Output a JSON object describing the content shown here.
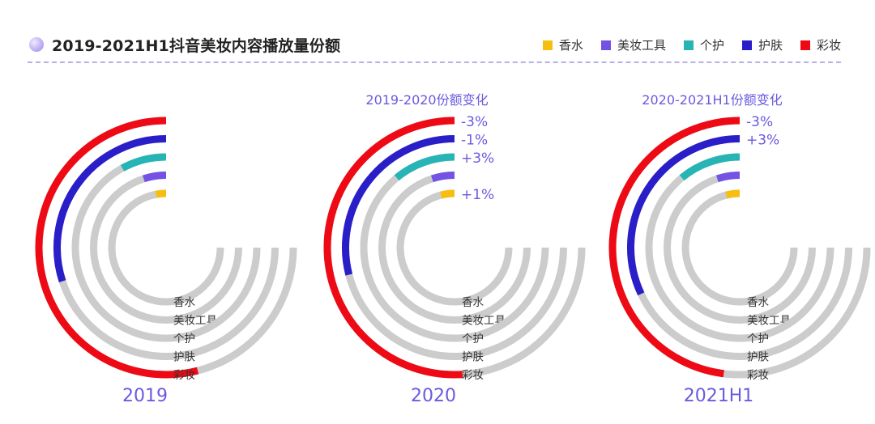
{
  "title": "2019-2021H1抖音美妆内容播放量份额",
  "legend": [
    {
      "label": "香水",
      "color": "#f7be12"
    },
    {
      "label": "美妆工具",
      "color": "#7452e4"
    },
    {
      "label": "个护",
      "color": "#26b4b4"
    },
    {
      "label": "护肤",
      "color": "#2a1ec8"
    },
    {
      "label": "彩妆",
      "color": "#ee0a14"
    }
  ],
  "colors": {
    "track": "#cccccc",
    "accent": "#6a5ae0"
  },
  "chart_data": [
    {
      "type": "radial-bar",
      "title": "2019",
      "subtitle": "",
      "series": [
        {
          "name": "香水",
          "value": 3,
          "change": ""
        },
        {
          "name": "美妆工具",
          "value": 5,
          "change": ""
        },
        {
          "name": "个护",
          "value": 8,
          "change": ""
        },
        {
          "name": "护肤",
          "value": 30,
          "change": ""
        },
        {
          "name": "彩妆",
          "value": 54,
          "change": ""
        }
      ],
      "max_value": 75
    },
    {
      "type": "radial-bar",
      "title": "2020",
      "subtitle": "2019-2020份额变化",
      "series": [
        {
          "name": "香水",
          "value": 4,
          "change": "+1%"
        },
        {
          "name": "美妆工具",
          "value": 5,
          "change": ""
        },
        {
          "name": "个护",
          "value": 11,
          "change": "+3%"
        },
        {
          "name": "护肤",
          "value": 29,
          "change": "-1%"
        },
        {
          "name": "彩妆",
          "value": 51,
          "change": "-3%"
        }
      ],
      "max_value": 75
    },
    {
      "type": "radial-bar",
      "title": "2021H1",
      "subtitle": "2020-2021H1份额变化",
      "series": [
        {
          "name": "香水",
          "value": 4,
          "change": ""
        },
        {
          "name": "美妆工具",
          "value": 5,
          "change": ""
        },
        {
          "name": "个护",
          "value": 11,
          "change": ""
        },
        {
          "name": "护肤",
          "value": 32,
          "change": "+3%"
        },
        {
          "name": "彩妆",
          "value": 48,
          "change": "-3%"
        }
      ],
      "max_value": 75
    }
  ]
}
